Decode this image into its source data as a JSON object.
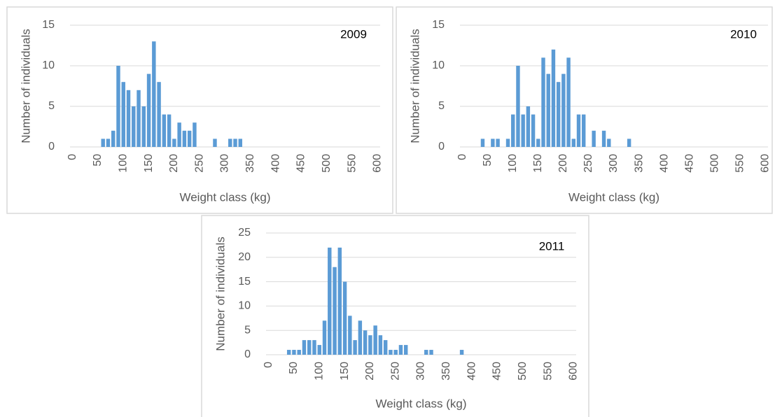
{
  "chart_data": [
    {
      "type": "bar",
      "annotation": "2009",
      "x_label": "Weight class (kg)",
      "y_label": "Number of individuals",
      "color": "#5b9bd5",
      "grid": true,
      "x": [
        60,
        70,
        80,
        90,
        100,
        110,
        120,
        130,
        140,
        150,
        160,
        170,
        180,
        190,
        200,
        210,
        220,
        230,
        240,
        280,
        310,
        320,
        330
      ],
      "values": [
        1,
        1,
        2,
        10,
        8,
        7,
        5,
        7,
        5,
        9,
        13,
        8,
        4,
        4,
        1,
        3,
        2,
        2,
        3,
        1,
        1,
        1,
        1
      ],
      "xlim": [
        -5,
        605
      ],
      "xticks": [
        0,
        50,
        100,
        150,
        200,
        250,
        300,
        350,
        400,
        450,
        500,
        550,
        600
      ],
      "ylim": [
        0,
        15
      ],
      "yticks": [
        0,
        5,
        10,
        15
      ]
    },
    {
      "type": "bar",
      "annotation": "2010",
      "x_label": "Weight class (kg)",
      "y_label": "Number of individuals",
      "color": "#5b9bd5",
      "grid": true,
      "x": [
        40,
        60,
        70,
        90,
        100,
        110,
        120,
        130,
        140,
        150,
        160,
        170,
        180,
        190,
        200,
        210,
        220,
        230,
        240,
        260,
        280,
        290,
        330
      ],
      "values": [
        1,
        1,
        1,
        1,
        4,
        10,
        4,
        5,
        4,
        1,
        11,
        9,
        12,
        8,
        9,
        11,
        1,
        4,
        4,
        2,
        2,
        1,
        1
      ],
      "xlim": [
        -5,
        605
      ],
      "xticks": [
        0,
        50,
        100,
        150,
        200,
        250,
        300,
        350,
        400,
        450,
        500,
        550,
        600
      ],
      "ylim": [
        0,
        15
      ],
      "yticks": [
        0,
        5,
        10,
        15
      ]
    },
    {
      "type": "bar",
      "annotation": "2011",
      "x_label": "Weight class (kg)",
      "y_label": "Number of individuals",
      "color": "#5b9bd5",
      "grid": true,
      "x": [
        40,
        50,
        60,
        70,
        80,
        90,
        100,
        110,
        120,
        130,
        140,
        150,
        160,
        170,
        180,
        190,
        200,
        210,
        220,
        230,
        240,
        250,
        260,
        270,
        310,
        320,
        380
      ],
      "values": [
        1,
        1,
        1,
        3,
        3,
        3,
        2,
        7,
        22,
        18,
        22,
        15,
        8,
        3,
        7,
        5,
        4,
        6,
        4,
        3,
        1,
        1,
        2,
        2,
        1,
        1,
        1
      ],
      "xlim": [
        -5,
        605
      ],
      "xticks": [
        0,
        50,
        100,
        150,
        200,
        250,
        300,
        350,
        400,
        450,
        500,
        550,
        600
      ],
      "ylim": [
        0,
        25
      ],
      "yticks": [
        0,
        5,
        10,
        15,
        20,
        25
      ]
    }
  ]
}
